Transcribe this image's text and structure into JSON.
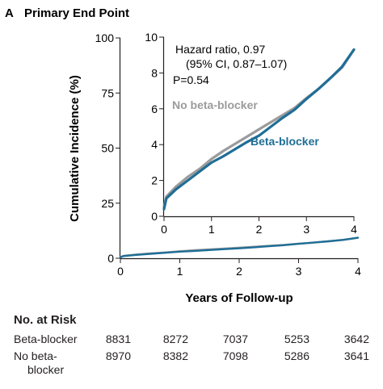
{
  "panel": {
    "letter": "A",
    "title": "Primary End Point"
  },
  "chart_data": {
    "type": "line",
    "xlabel": "Years of Follow-up",
    "ylabel": "Cumulative Incidence (%)",
    "xlim": [
      0,
      4
    ],
    "ylim": [
      0,
      100
    ],
    "x_ticks": [
      0,
      1,
      2,
      3,
      4
    ],
    "y_ticks": [
      0,
      25,
      50,
      75,
      100
    ],
    "series": [
      {
        "name": "Beta-blocker",
        "color": "#1f6e96",
        "x": [
          0,
          0.05,
          0.25,
          0.5,
          0.75,
          1.0,
          1.25,
          1.5,
          1.75,
          2.0,
          2.25,
          2.5,
          2.75,
          3.0,
          3.25,
          3.5,
          3.75,
          4.0
        ],
        "y": [
          0.4,
          1.0,
          1.5,
          2.0,
          2.5,
          3.0,
          3.35,
          3.75,
          4.15,
          4.5,
          5.0,
          5.5,
          5.95,
          6.55,
          7.1,
          7.7,
          8.35,
          9.3
        ]
      },
      {
        "name": "No beta-blocker",
        "color": "#9b9b9b",
        "x": [
          0,
          0.05,
          0.25,
          0.5,
          0.75,
          1.0,
          1.25,
          1.5,
          1.75,
          2.0,
          2.25,
          2.5,
          2.75,
          3.0,
          3.25,
          3.5,
          3.75,
          4.0
        ],
        "y": [
          0.5,
          1.1,
          1.65,
          2.2,
          2.65,
          3.2,
          3.65,
          4.05,
          4.45,
          4.85,
          5.25,
          5.65,
          6.05,
          6.6,
          7.1,
          7.7,
          8.3,
          9.3
        ]
      }
    ],
    "inset": {
      "xlim": [
        0,
        4
      ],
      "ylim": [
        0,
        10
      ],
      "x_ticks": [
        0,
        1,
        2,
        3,
        4
      ],
      "y_ticks": [
        0,
        2,
        4,
        6,
        8,
        10
      ],
      "annotation": [
        "Hazard ratio, 0.97",
        "(95% CI, 0.87–1.07)",
        "P=0.54"
      ],
      "label_no_beta": "No beta-blocker",
      "label_beta": "Beta-blocker"
    }
  },
  "risk_table": {
    "title": "No. at Risk",
    "rows": [
      {
        "label_lines": [
          "Beta-blocker"
        ],
        "values": [
          "8831",
          "8272",
          "7037",
          "5253",
          "3642"
        ]
      },
      {
        "label_lines": [
          "No beta-",
          "blocker"
        ],
        "values": [
          "8970",
          "8382",
          "7098",
          "5286",
          "3641"
        ]
      }
    ]
  }
}
